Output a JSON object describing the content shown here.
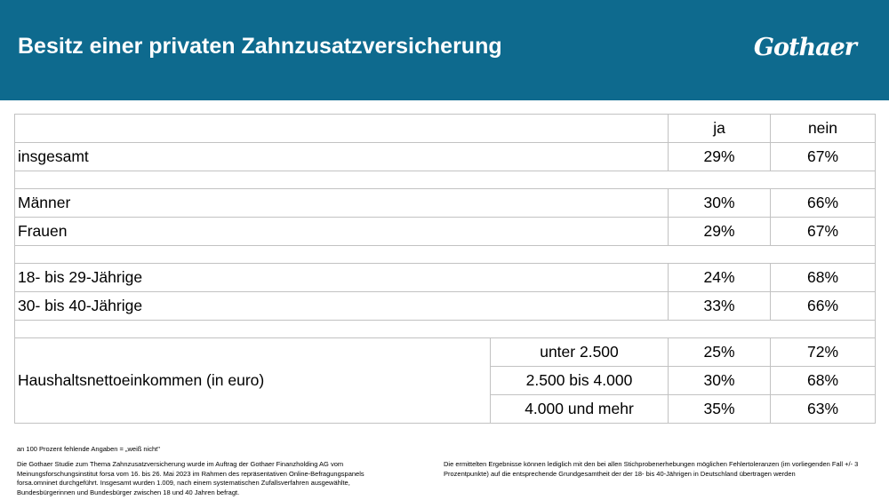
{
  "header": {
    "title": "Besitz einer privaten Zahnzusatzversicherung",
    "logo": "Gothaer",
    "bg_color": "#0e6a8e"
  },
  "table": {
    "columns": [
      "ja",
      "nein"
    ],
    "rows": [
      {
        "label": "insgesamt",
        "ja": "29%",
        "nein": "67%"
      },
      {
        "label": "Männer",
        "ja": "30%",
        "nein": "66%"
      },
      {
        "label": "Frauen",
        "ja": "29%",
        "nein": "67%"
      },
      {
        "label": "18- bis 29-Jährige",
        "ja": "24%",
        "nein": "68%"
      },
      {
        "label": "30- bis 40-Jährige",
        "ja": "33%",
        "nein": "66%"
      }
    ],
    "income": {
      "label": "Haushaltsnettoeinkommen (in euro)",
      "rows": [
        {
          "label": "unter 2.500",
          "ja": "25%",
          "nein": "72%"
        },
        {
          "label": "2.500 bis 4.000",
          "ja": "30%",
          "nein": "68%"
        },
        {
          "label": "4.000 und mehr",
          "ja": "35%",
          "nein": "63%"
        }
      ]
    }
  },
  "footnotes": {
    "missing": "an 100 Prozent fehlende Angaben = „weiß nicht\"",
    "study": "Die Gothaer Studie zum Thema Zahnzusatzversicherung wurde im Auftrag der Gothaer Finanzholding AG vom Meinungsforschungsinstitut forsa vom 16. bis  26. Mai 2023 im Rahmen des repräsentativen Online-Befragungspanels forsa.omninet durchgeführt. Insgesamt wurden 1.009, nach einem systematischen Zufallsverfahren ausgewählte, Bundesbürgerinnen und Bundesbürger zwischen 18 und 40 Jahren befragt.",
    "tolerance": "Die ermittelten Ergebnisse können lediglich mit den bei allen Stichprobenerhebungen möglichen Fehlertoleranzen (im vorliegenden Fall +/- 3 Prozentpunkte) auf die entsprechende Grundgesamtheit der der 18- bis 40-Jährigen in Deutschland übertragen werden"
  }
}
